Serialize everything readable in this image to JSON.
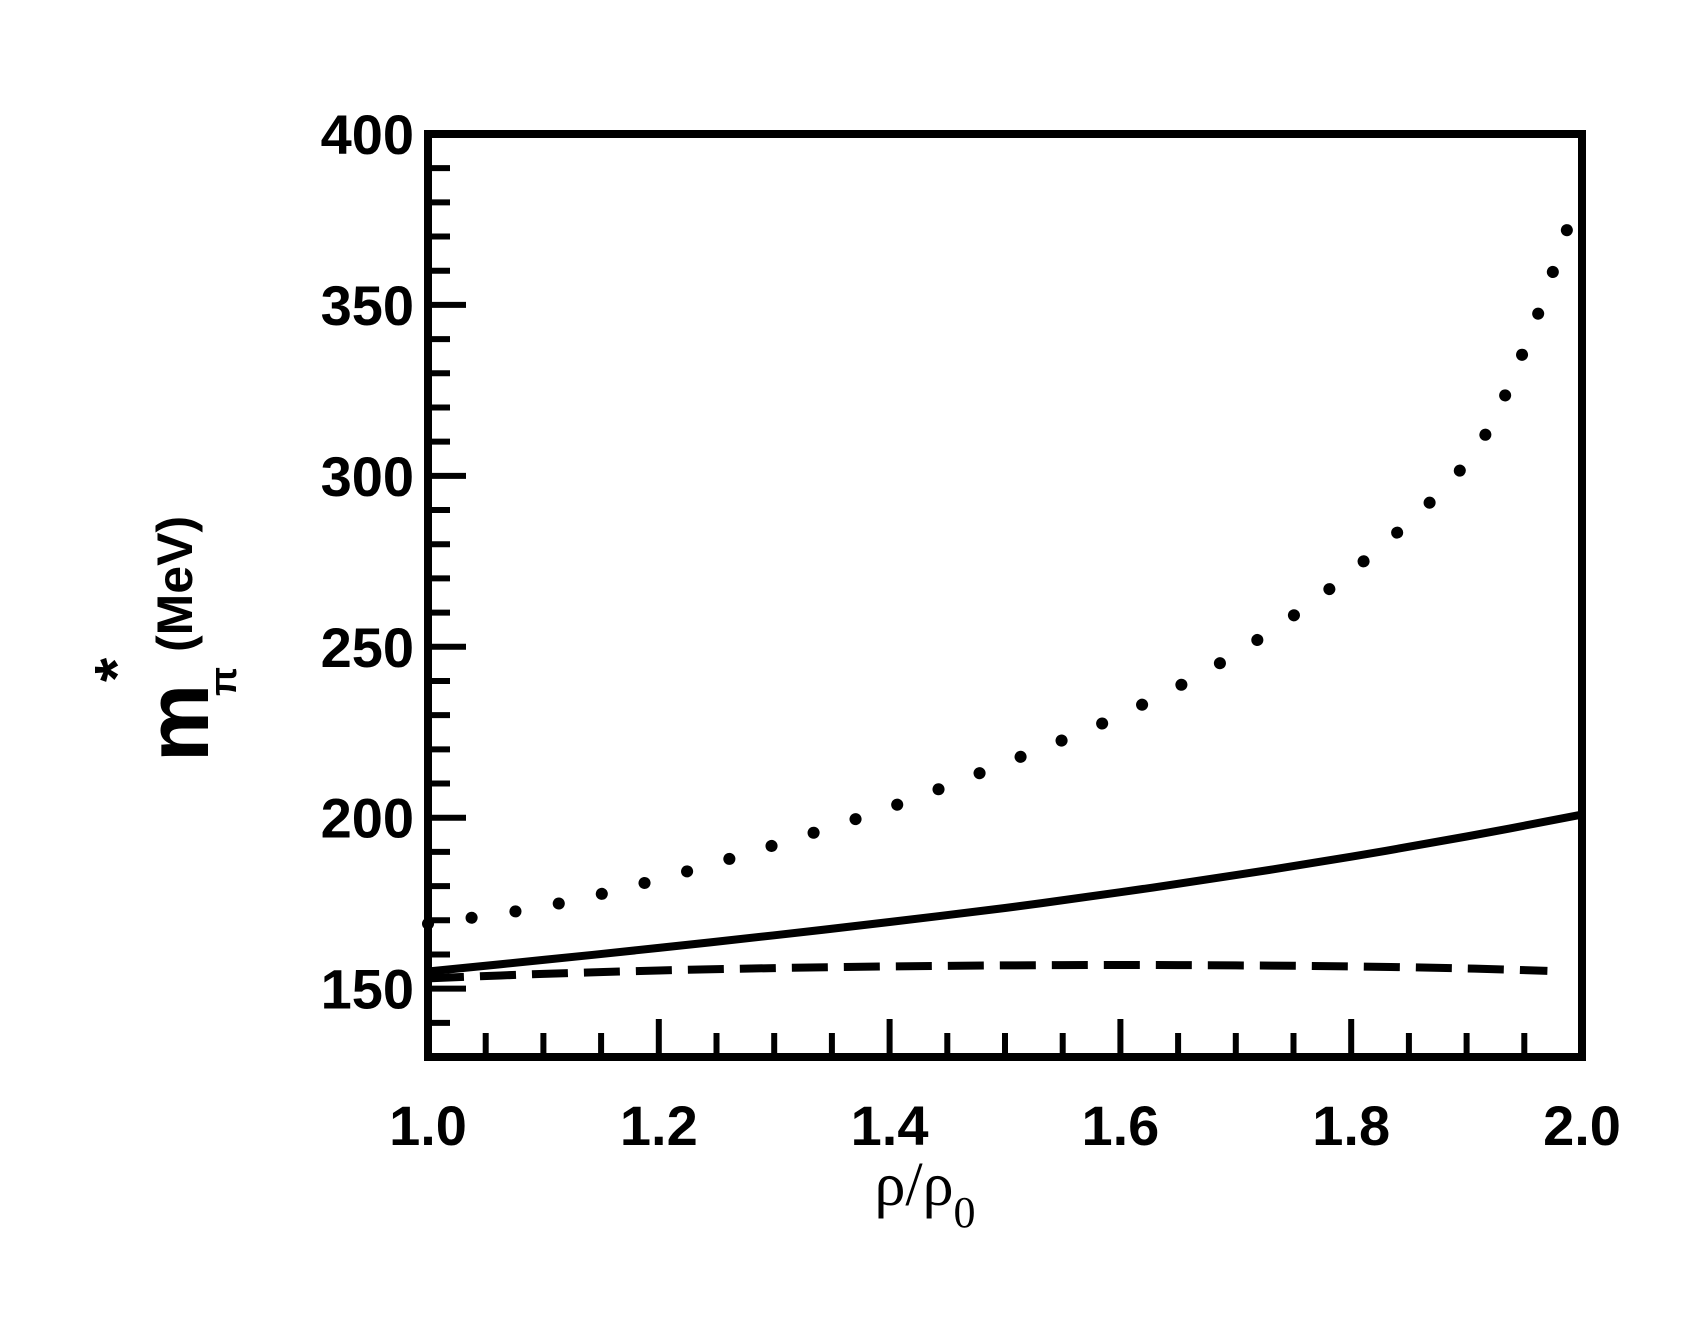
{
  "chart_data": {
    "type": "line",
    "xlim": [
      1.0,
      2.0
    ],
    "ylim": [
      130,
      400
    ],
    "x_ticks": [
      "1.0",
      "1.2",
      "1.4",
      "1.6",
      "1.8",
      "2.0"
    ],
    "y_ticks": [
      "150",
      "200",
      "250",
      "300",
      "350",
      "400"
    ],
    "xlabel": {
      "main": "ρ/ρ",
      "sub": "0"
    },
    "ylabel": {
      "main": "m",
      "sub": "π",
      "sup": "*",
      "unit": "(MeV)"
    },
    "grid": false,
    "legend": "none",
    "series": [
      {
        "style": "solid",
        "x": [
          1.0,
          1.1,
          1.2,
          1.3,
          1.4,
          1.5,
          1.6,
          1.7,
          1.8,
          1.9,
          2.0
        ],
        "y": [
          155,
          158.4,
          161.9,
          165.6,
          169.5,
          173.6,
          178.2,
          183.2,
          188.6,
          194.5,
          200.9
        ]
      },
      {
        "style": "dashed",
        "x": [
          1.0,
          1.1,
          1.2,
          1.3,
          1.4,
          1.5,
          1.6,
          1.7,
          1.8,
          1.9,
          1.97
        ],
        "y": [
          153,
          154.3,
          155.3,
          156,
          156.5,
          156.8,
          156.9,
          156.8,
          156.5,
          155.9,
          155.2
        ]
      },
      {
        "style": "dotted",
        "x": [
          1.0,
          1.1,
          1.2,
          1.3,
          1.4,
          1.5,
          1.6,
          1.7,
          1.8,
          1.9,
          1.95,
          1.995
        ],
        "y": [
          169,
          174,
          182,
          192,
          203,
          216,
          230,
          248,
          272,
          304,
          337,
          380
        ]
      }
    ]
  }
}
